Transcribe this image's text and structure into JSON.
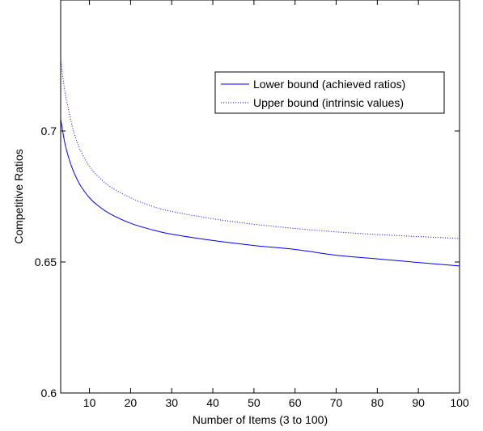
{
  "chart_data": {
    "type": "line",
    "xlabel": "Number of Items (3 to 100)",
    "ylabel": "Competitive Ratios",
    "xlim": [
      3,
      100
    ],
    "ylim": [
      0.6,
      0.75
    ],
    "x_ticks": [
      10,
      20,
      30,
      40,
      50,
      60,
      70,
      80,
      90,
      100
    ],
    "y_ticks": [
      0.6,
      0.65,
      0.7
    ],
    "y_tick_labels": [
      "0.6",
      "0.65",
      "0.7"
    ],
    "grid": false,
    "legend_position": "top-right",
    "series": [
      {
        "name": "Lower bound (achieved ratios)",
        "style": "solid",
        "color": "#0000ff",
        "x": [
          3,
          4,
          5,
          6,
          7,
          8,
          10,
          12,
          15,
          20,
          25,
          30,
          40,
          50,
          60,
          70,
          80,
          90,
          100
        ],
        "y": [
          0.7045,
          0.6955,
          0.6895,
          0.685,
          0.6815,
          0.6787,
          0.6745,
          0.6716,
          0.6684,
          0.6648,
          0.6624,
          0.6606,
          0.6582,
          0.6563,
          0.6548,
          0.6526,
          0.6512,
          0.6498,
          0.6485
        ]
      },
      {
        "name": "Upper bound (intrinsic values)",
        "style": "dotted",
        "color": "#0000ff",
        "x": [
          3,
          4,
          5,
          6,
          7,
          8,
          10,
          12,
          15,
          20,
          25,
          30,
          40,
          50,
          60,
          70,
          80,
          90,
          100
        ],
        "y": [
          0.7275,
          0.7153,
          0.7075,
          0.7005,
          0.6958,
          0.692,
          0.6865,
          0.6828,
          0.6788,
          0.6745,
          0.6714,
          0.6693,
          0.6665,
          0.6644,
          0.6628,
          0.6615,
          0.6605,
          0.6597,
          0.659
        ]
      }
    ]
  }
}
